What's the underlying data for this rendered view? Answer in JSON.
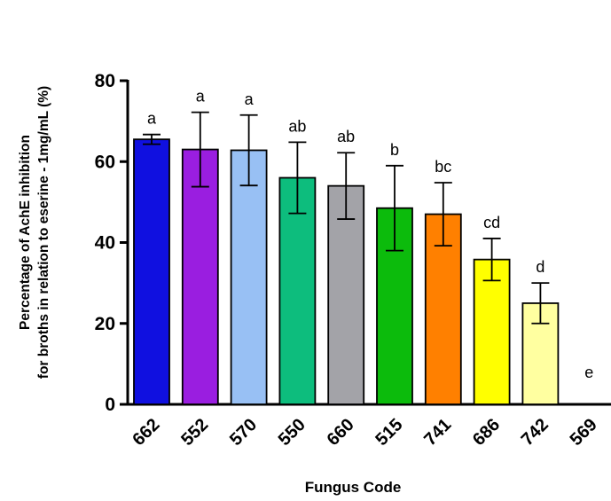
{
  "chart_data": {
    "type": "bar",
    "xlabel": "Fungus Code",
    "ylabel_lines": [
      "Percentage of AchE inhibition",
      "for broths in relation to eserine - 1mg/mL (%)"
    ],
    "ylim": [
      0,
      80
    ],
    "yticks": [
      0,
      20,
      40,
      60,
      80
    ],
    "grid": false,
    "categories": [
      "662",
      "552",
      "570",
      "550",
      "660",
      "515",
      "741",
      "686",
      "742",
      "569"
    ],
    "values": [
      65.5,
      63,
      62.8,
      56,
      54,
      48.5,
      47,
      35.8,
      25,
      0
    ],
    "error": [
      1.2,
      9.2,
      8.7,
      8.8,
      8.2,
      10.5,
      7.8,
      5.2,
      5,
      0
    ],
    "significance": [
      "a",
      "a",
      "a",
      "ab",
      "ab",
      "b",
      "bc",
      "cd",
      "d",
      "e"
    ],
    "colors": [
      "#1010e0",
      "#9a1ee0",
      "#98c0f4",
      "#0dbd7d",
      "#a3a3a8",
      "#0cbb0c",
      "#ff8000",
      "#ffff00",
      "#ffffa0",
      "#ffffff"
    ]
  }
}
